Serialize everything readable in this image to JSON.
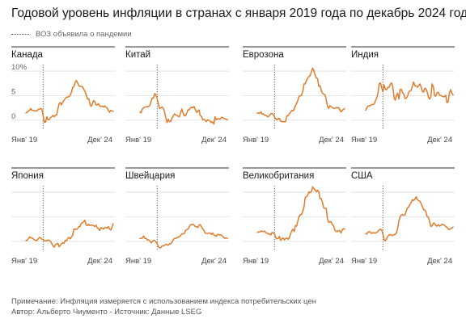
{
  "title": "Годовой уровень инфляции в странах с января 2019 года по декабрь 2024 года",
  "legend_label": "ВОЗ объявила о пандемии",
  "note": "Примечание: Инфляция измеряется с использованием индекса потребительских цен",
  "credit": "Автор: Альберто Чиументо - Источник: Данные LSEG",
  "line_color": "#e07b2a",
  "chart_data": [
    {
      "type": "line",
      "title": "Канада",
      "x_start": "Янв' 19",
      "x_end": "Дек' 24",
      "ytick_labels": [
        "10%",
        "5",
        "0"
      ],
      "yticks": [
        10,
        5,
        0
      ],
      "ylim": [
        -1.5,
        11
      ],
      "values": [
        1.5,
        1.6,
        1.9,
        2.0,
        2.4,
        2.0,
        2.0,
        1.9,
        1.9,
        1.9,
        2.2,
        2.2,
        2.4,
        2.2,
        0.9,
        -0.4,
        -0.4,
        0.7,
        0.1,
        0.1,
        0.5,
        0.7,
        1.0,
        0.7,
        1.0,
        1.1,
        2.2,
        3.4,
        3.6,
        3.1,
        3.7,
        4.1,
        4.4,
        4.7,
        4.7,
        4.8,
        5.1,
        5.7,
        6.7,
        6.8,
        7.7,
        8.1,
        7.6,
        7.0,
        6.9,
        6.9,
        6.8,
        6.3,
        5.9,
        5.2,
        4.3,
        4.4,
        3.4,
        2.8,
        3.3,
        4.0,
        3.8,
        3.1,
        3.1,
        3.4,
        2.9,
        2.8,
        2.9,
        2.7,
        2.9,
        2.7,
        2.5,
        2.0,
        1.6,
        2.0,
        1.9,
        1.8
      ]
    },
    {
      "type": "line",
      "title": "Китай",
      "x_start": "Янв' 19",
      "x_end": "Дек' 24",
      "yticks": [
        10,
        5,
        0
      ],
      "ylim": [
        -1.5,
        11
      ],
      "values": [
        1.7,
        1.5,
        2.3,
        2.5,
        2.7,
        2.7,
        2.8,
        2.8,
        3.0,
        3.8,
        4.5,
        4.5,
        5.4,
        5.2,
        4.3,
        3.3,
        2.4,
        2.5,
        2.7,
        2.4,
        1.7,
        0.5,
        -0.5,
        0.2,
        -0.3,
        -0.2,
        0.4,
        0.9,
        1.3,
        1.1,
        1.0,
        0.8,
        0.7,
        1.5,
        2.3,
        1.5,
        0.9,
        0.9,
        1.5,
        2.1,
        2.1,
        2.5,
        2.7,
        2.5,
        2.8,
        2.1,
        1.6,
        1.8,
        2.1,
        1.0,
        0.7,
        0.1,
        0.2,
        0.0,
        -0.3,
        0.1,
        0.0,
        -0.2,
        -0.5,
        -0.3,
        -0.8,
        0.7,
        0.1,
        0.3,
        0.3,
        0.2,
        0.5,
        0.6,
        0.4,
        0.3,
        0.2,
        0.1
      ]
    },
    {
      "type": "line",
      "title": "Еврозона",
      "x_start": "Янв' 19",
      "x_end": "Дек' 24",
      "yticks": [
        10,
        5,
        0
      ],
      "ylim": [
        -1.5,
        11
      ],
      "values": [
        1.4,
        1.5,
        1.4,
        1.7,
        1.2,
        1.3,
        1.0,
        1.0,
        0.8,
        0.7,
        1.0,
        1.3,
        1.4,
        1.2,
        0.7,
        0.3,
        0.1,
        0.3,
        0.4,
        -0.2,
        -0.3,
        -0.3,
        -0.3,
        -0.3,
        0.9,
        0.9,
        1.3,
        1.6,
        2.0,
        1.9,
        2.2,
        3.0,
        3.4,
        4.1,
        4.9,
        5.0,
        5.1,
        5.9,
        7.4,
        7.4,
        8.1,
        8.6,
        8.9,
        9.1,
        9.9,
        10.6,
        10.1,
        9.2,
        8.6,
        8.5,
        6.9,
        7.0,
        6.1,
        5.5,
        5.3,
        5.2,
        4.3,
        2.9,
        2.4,
        2.9,
        2.8,
        2.6,
        2.4,
        2.4,
        2.6,
        2.5,
        2.6,
        2.2,
        1.7,
        2.0,
        2.2,
        2.4
      ]
    },
    {
      "type": "line",
      "title": "Индия",
      "x_start": "Янв' 19",
      "x_end": "Дек' 24",
      "yticks": [
        10,
        5,
        0
      ],
      "ylim": [
        -1.5,
        11
      ],
      "values": [
        2.0,
        2.6,
        2.9,
        2.9,
        3.0,
        3.2,
        3.2,
        3.3,
        4.0,
        4.6,
        5.5,
        7.4,
        7.6,
        6.6,
        5.8,
        7.2,
        6.3,
        6.2,
        6.7,
        6.7,
        7.3,
        7.6,
        6.9,
        4.6,
        4.1,
        5.0,
        5.5,
        4.3,
        6.3,
        6.3,
        5.6,
        5.3,
        4.4,
        4.5,
        4.9,
        5.7,
        6.0,
        6.1,
        7.0,
        7.8,
        7.0,
        7.0,
        6.7,
        7.0,
        7.4,
        6.8,
        5.9,
        5.7,
        6.5,
        6.4,
        5.7,
        4.7,
        4.3,
        4.9,
        7.4,
        6.8,
        5.0,
        4.9,
        5.6,
        5.7,
        5.1,
        5.1,
        4.9,
        4.8,
        4.8,
        5.1,
        3.6,
        3.7,
        5.5,
        6.2,
        5.5,
        5.2
      ]
    },
    {
      "type": "line",
      "title": "Япония",
      "x_start": "Янв' 19",
      "x_end": "Дек' 24",
      "yticks": [
        10,
        5,
        0
      ],
      "ylim": [
        -1.5,
        11
      ],
      "values": [
        0.2,
        0.2,
        0.5,
        0.9,
        0.7,
        0.7,
        0.5,
        0.3,
        0.2,
        0.2,
        0.5,
        0.8,
        0.7,
        0.4,
        0.4,
        0.1,
        0.1,
        0.1,
        0.3,
        0.2,
        0.0,
        -0.4,
        -0.9,
        -1.2,
        -0.7,
        -0.5,
        -0.4,
        -1.1,
        -0.8,
        -0.5,
        -0.3,
        -0.4,
        0.2,
        0.1,
        0.6,
        0.8,
        0.5,
        0.9,
        1.2,
        2.5,
        2.5,
        2.4,
        2.6,
        3.0,
        3.0,
        3.7,
        3.8,
        4.0,
        4.3,
        3.3,
        3.2,
        3.5,
        3.2,
        3.3,
        3.3,
        3.2,
        3.0,
        3.3,
        2.8,
        2.6,
        2.2,
        2.8,
        2.7,
        2.5,
        2.8,
        2.8,
        2.7,
        3.0,
        2.5,
        2.3,
        2.9,
        3.6
      ]
    },
    {
      "type": "line",
      "title": "Швейцария",
      "x_start": "Янв' 19",
      "x_end": "Дек' 24",
      "yticks": [
        10,
        5,
        0
      ],
      "ylim": [
        -1.5,
        11
      ],
      "values": [
        0.6,
        0.6,
        0.7,
        1.1,
        0.6,
        0.6,
        0.3,
        0.3,
        0.1,
        -0.3,
        -0.1,
        0.2,
        0.2,
        -0.1,
        -0.5,
        -1.1,
        -1.3,
        -1.3,
        -0.9,
        -0.9,
        -0.8,
        -0.6,
        -0.7,
        -0.8,
        -0.5,
        -0.5,
        -0.2,
        0.3,
        0.6,
        0.6,
        0.7,
        0.9,
        0.9,
        1.2,
        1.5,
        1.5,
        1.6,
        2.2,
        2.4,
        2.5,
        2.9,
        3.4,
        3.4,
        3.5,
        3.3,
        3.0,
        3.0,
        2.8,
        3.3,
        3.4,
        2.9,
        2.6,
        2.2,
        1.7,
        1.6,
        1.6,
        1.7,
        1.7,
        1.4,
        1.7,
        1.3,
        1.2,
        1.0,
        1.4,
        1.4,
        1.3,
        1.3,
        1.1,
        0.8,
        0.6,
        0.7,
        0.6
      ]
    },
    {
      "type": "line",
      "title": "Великобритания",
      "x_start": "Янв' 19",
      "x_end": "Дек' 24",
      "yticks": [
        10,
        5,
        0
      ],
      "ylim": [
        -1.5,
        11
      ],
      "values": [
        1.8,
        1.9,
        1.9,
        2.1,
        2.0,
        2.0,
        2.1,
        1.7,
        1.7,
        1.5,
        1.5,
        1.3,
        1.8,
        1.7,
        1.5,
        0.8,
        0.5,
        0.6,
        1.0,
        0.2,
        0.5,
        0.7,
        0.3,
        0.6,
        0.7,
        0.4,
        0.7,
        1.5,
        2.1,
        2.5,
        2.0,
        3.2,
        3.1,
        4.2,
        5.1,
        5.4,
        5.5,
        6.2,
        7.0,
        9.0,
        9.1,
        9.4,
        10.1,
        9.9,
        10.1,
        11.1,
        10.7,
        10.5,
        10.1,
        10.4,
        10.1,
        8.7,
        8.7,
        7.9,
        6.8,
        6.7,
        6.7,
        4.6,
        3.9,
        4.0,
        4.0,
        3.4,
        3.2,
        2.3,
        2.0,
        2.0,
        2.2,
        2.2,
        1.7,
        2.3,
        2.6,
        2.5
      ]
    },
    {
      "type": "line",
      "title": "США",
      "x_start": "Янв' 19",
      "x_end": "Дек' 24",
      "yticks": [
        10,
        5,
        0
      ],
      "ylim": [
        -1.5,
        11
      ],
      "values": [
        1.6,
        1.5,
        1.9,
        2.0,
        1.8,
        1.6,
        1.8,
        1.7,
        1.7,
        1.8,
        2.1,
        2.3,
        2.5,
        2.3,
        1.5,
        0.3,
        0.1,
        0.6,
        1.0,
        1.3,
        1.4,
        1.2,
        1.2,
        1.4,
        1.4,
        1.7,
        2.6,
        4.2,
        5.0,
        5.4,
        5.4,
        5.3,
        5.4,
        6.2,
        6.8,
        7.0,
        7.5,
        7.9,
        8.5,
        8.3,
        8.6,
        9.1,
        8.5,
        8.3,
        8.2,
        7.7,
        7.1,
        6.5,
        6.4,
        6.0,
        5.0,
        4.9,
        4.0,
        3.0,
        3.2,
        3.7,
        3.7,
        3.2,
        3.1,
        3.4,
        3.1,
        3.2,
        3.5,
        3.4,
        3.3,
        3.0,
        2.9,
        2.5,
        2.4,
        2.6,
        2.7,
        2.9
      ]
    }
  ]
}
